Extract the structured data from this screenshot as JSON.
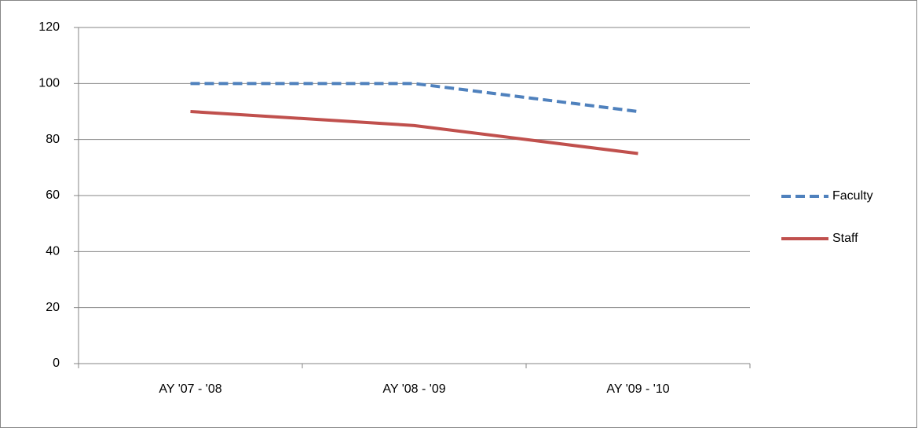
{
  "chart_data": {
    "type": "line",
    "categories": [
      "AY '07 - '08",
      "AY '08 - '09",
      "AY '09 - '10"
    ],
    "series": [
      {
        "name": "Faculty",
        "color": "#4f81bd",
        "style": "dashed",
        "values": [
          100,
          100,
          90
        ]
      },
      {
        "name": "Staff",
        "color": "#c0504d",
        "style": "solid",
        "values": [
          90,
          85,
          75
        ]
      }
    ],
    "ylim": [
      0,
      120
    ],
    "yticks": [
      0,
      20,
      40,
      60,
      80,
      100,
      120
    ],
    "grid": true,
    "legend": "right"
  }
}
